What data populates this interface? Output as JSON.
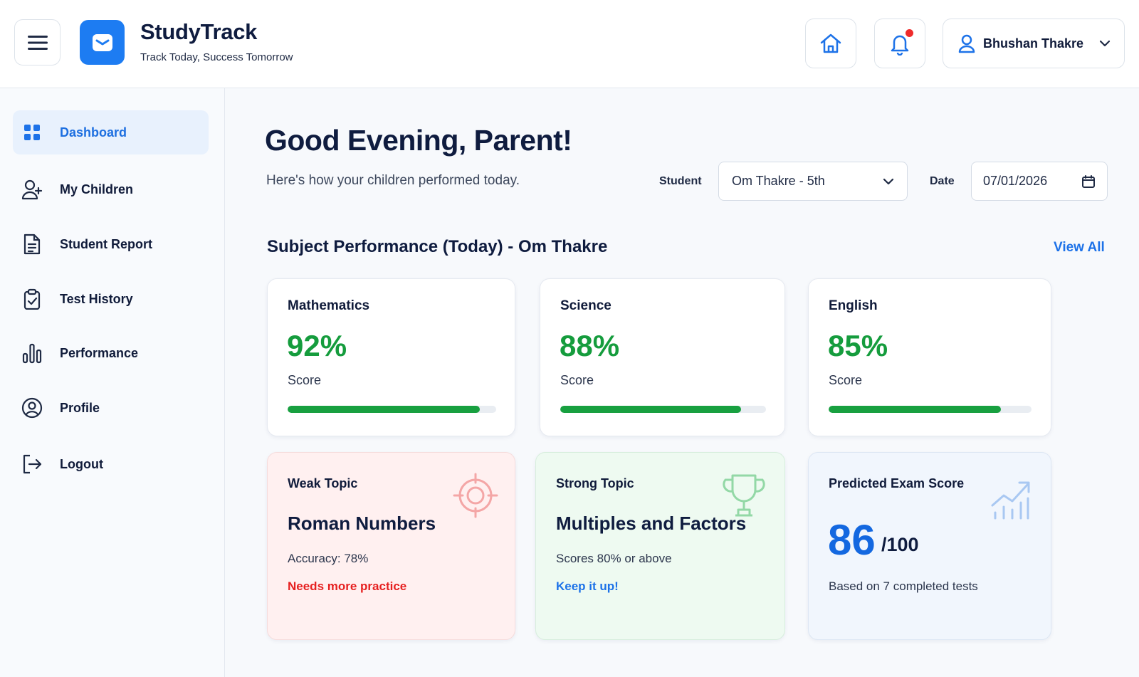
{
  "header": {
    "app_title": "StudyTrack",
    "app_subtitle": "Track Today, Success Tomorrow",
    "user_name": "Bhushan Thakre",
    "accent_color": "#1d7cf2"
  },
  "sidebar": {
    "items": [
      {
        "label": "Dashboard",
        "icon": "grid-icon",
        "active": true
      },
      {
        "label": "My Children",
        "icon": "user-plus-icon"
      },
      {
        "label": "Student Report",
        "icon": "document-icon"
      },
      {
        "label": "Test History",
        "icon": "clipboard-check-icon"
      },
      {
        "label": "Performance",
        "icon": "bar-chart-icon"
      },
      {
        "label": "Profile",
        "icon": "user-circle-icon"
      },
      {
        "label": "Logout",
        "icon": "logout-icon"
      }
    ]
  },
  "main": {
    "greeting": "Good Evening, Parent!",
    "greeting_sub": "Here's how your children performed today.",
    "filters": {
      "student_label": "Student",
      "student_value": "Om Thakre - 5th",
      "date_label": "Date",
      "date_value": "07/01/2026"
    },
    "section_title": "Subject Performance (Today) - Om Thakre",
    "view_all": "View All",
    "subjects": [
      {
        "name": "Mathematics",
        "score": "92%",
        "score_label": "Score",
        "progress": 0.92
      },
      {
        "name": "Science",
        "score": "88%",
        "score_label": "Score",
        "progress": 0.88
      },
      {
        "name": "English",
        "score": "85%",
        "score_label": "Score",
        "progress": 0.85
      }
    ],
    "weak_topic": {
      "title": "Weak Topic",
      "topic": "Roman Numbers",
      "detail": "Accuracy: 78%",
      "action": "Needs more practice",
      "icon": "target-icon",
      "color": "#e62020"
    },
    "strong_topic": {
      "title": "Strong Topic",
      "topic": "Multiples and Factors",
      "detail": "Scores 80% or above",
      "action": "Keep it up!",
      "icon": "trophy-icon",
      "color": "#1d72e8"
    },
    "predicted": {
      "title": "Predicted Exam Score",
      "score": "86",
      "out_of": "/100",
      "detail": "Based on 7 completed tests",
      "icon": "trend-chart-icon"
    }
  }
}
